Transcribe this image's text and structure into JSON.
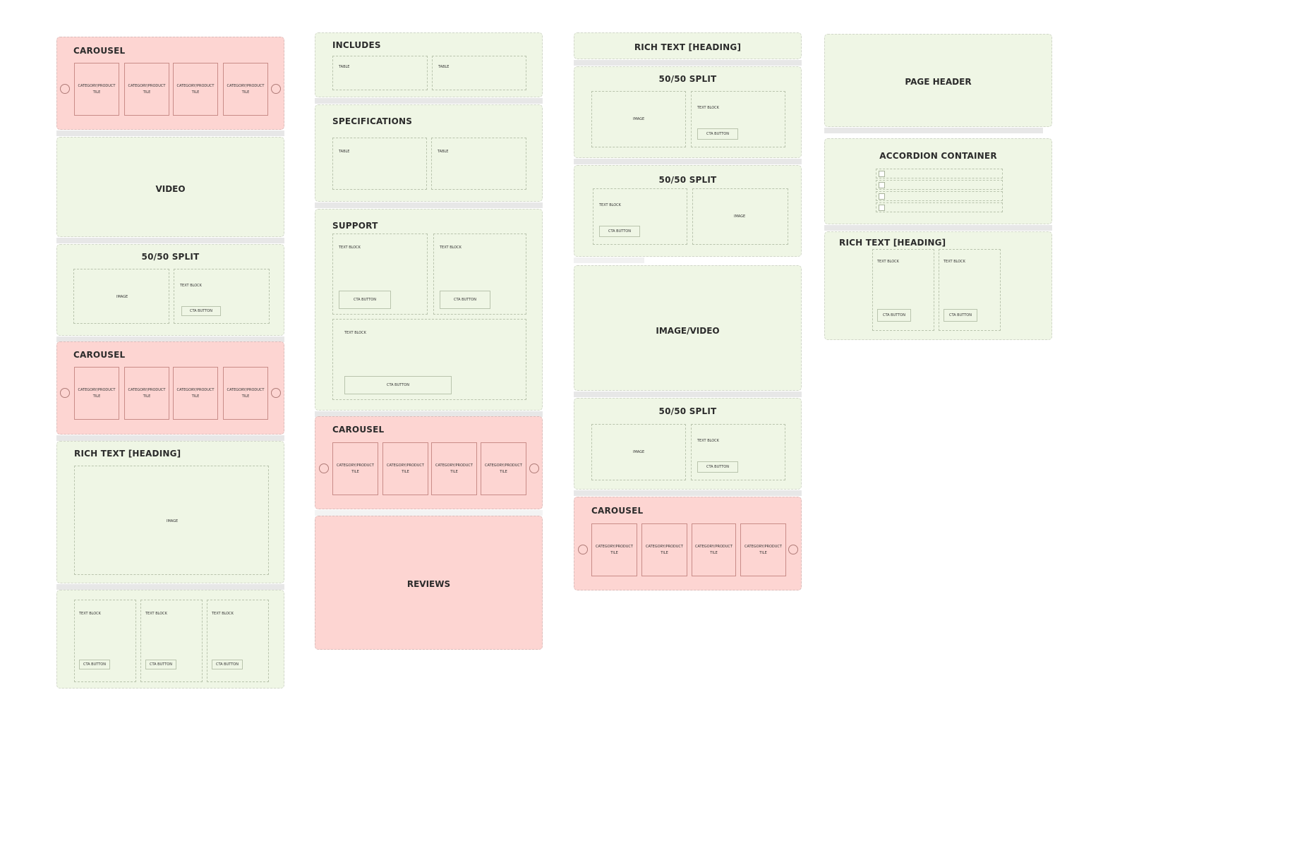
{
  "labels": {
    "carousel": "CAROUSEL",
    "video": "VIDEO",
    "split": "50/50 SPLIT",
    "rich_text_heading": "RICH TEXT [HEADING]",
    "includes": "INCLUDES",
    "specifications": "SPECIFICATIONS",
    "support": "SUPPORT",
    "reviews": "REVIEWS",
    "image_video": "IMAGE/VIDEO",
    "page_header": "PAGE HEADER",
    "accordion_container": "ACCORDION CONTAINER",
    "image": "IMAGE",
    "text_block": "TEXT BLOCK",
    "cta_button": "CTA BUTTON",
    "table": "TABLE",
    "tile": "CATEGORY/PRODUCT TILE"
  },
  "colors": {
    "green_section": "#eff6e5",
    "red_section": "#fdd5d2",
    "separator": "#e7e7e7"
  }
}
